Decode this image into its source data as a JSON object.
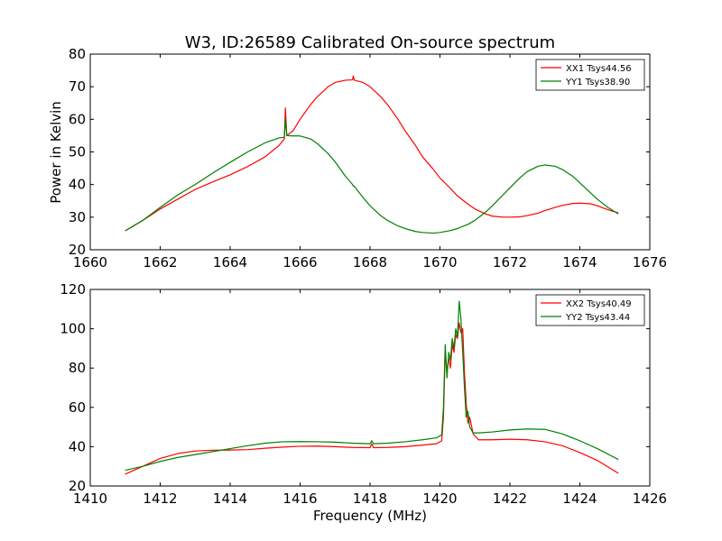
{
  "figure": {
    "title": "W3, ID:26589 Calibrated On-source spectrum",
    "xlabel": "Frequency (MHz)",
    "ylabel": "Power in Kelvin"
  },
  "chart_data": [
    {
      "type": "line",
      "title": "W3, ID:26589 Calibrated On-source spectrum",
      "xlabel": "",
      "ylabel": "Power in Kelvin",
      "xlim": [
        1660,
        1676
      ],
      "ylim": [
        20,
        80
      ],
      "xticks": [
        1660,
        1662,
        1664,
        1666,
        1668,
        1670,
        1672,
        1674,
        1676
      ],
      "yticks": [
        20,
        30,
        40,
        50,
        60,
        70,
        80
      ],
      "legend_position": "top-right",
      "grid": false,
      "series": [
        {
          "name": "XX1 Tsys44.56",
          "color": "#ff0000",
          "x": [
            1661.0,
            1661.5,
            1662.0,
            1662.5,
            1663.0,
            1663.5,
            1664.0,
            1664.5,
            1665.0,
            1665.4,
            1665.55,
            1665.58,
            1665.62,
            1665.8,
            1666.0,
            1666.3,
            1666.5,
            1666.8,
            1667.0,
            1667.3,
            1667.5,
            1667.52,
            1667.55,
            1667.8,
            1668.0,
            1668.3,
            1668.5,
            1668.8,
            1669.0,
            1669.3,
            1669.5,
            1669.8,
            1670.0,
            1670.3,
            1670.5,
            1670.8,
            1671.0,
            1671.3,
            1671.5,
            1671.8,
            1672.0,
            1672.3,
            1672.5,
            1672.8,
            1673.0,
            1673.3,
            1673.5,
            1673.8,
            1674.0,
            1674.3,
            1674.5,
            1674.8,
            1675.1
          ],
          "y": [
            25.8,
            29.0,
            32.5,
            35.5,
            38.5,
            40.8,
            43.0,
            45.5,
            48.5,
            52.0,
            54.0,
            63.5,
            55.0,
            56.5,
            60.0,
            64.5,
            67.0,
            70.0,
            71.3,
            72.0,
            72.1,
            73.3,
            72.0,
            71.3,
            70.0,
            67.0,
            64.5,
            60.0,
            56.5,
            52.0,
            48.5,
            44.8,
            42.0,
            38.8,
            36.5,
            34.0,
            32.5,
            31.0,
            30.3,
            30.0,
            30.0,
            30.1,
            30.5,
            31.2,
            32.0,
            33.0,
            33.6,
            34.2,
            34.3,
            34.1,
            33.5,
            32.3,
            31.3
          ]
        },
        {
          "name": "YY1 Tsys38.90",
          "color": "#008000",
          "x": [
            1661.0,
            1661.5,
            1662.0,
            1662.5,
            1663.0,
            1663.5,
            1664.0,
            1664.5,
            1665.0,
            1665.4,
            1665.55,
            1665.58,
            1665.62,
            1665.8,
            1666.0,
            1666.3,
            1666.5,
            1666.8,
            1667.0,
            1667.3,
            1667.5,
            1667.52,
            1667.55,
            1667.8,
            1668.0,
            1668.3,
            1668.5,
            1668.8,
            1669.0,
            1669.3,
            1669.5,
            1669.8,
            1670.0,
            1670.3,
            1670.5,
            1670.8,
            1671.0,
            1671.3,
            1671.5,
            1671.8,
            1672.0,
            1672.3,
            1672.5,
            1672.8,
            1673.0,
            1673.3,
            1673.5,
            1673.8,
            1674.0,
            1674.3,
            1674.5,
            1674.8,
            1675.1
          ],
          "y": [
            25.8,
            29.0,
            33.0,
            36.8,
            40.0,
            43.5,
            46.8,
            50.0,
            52.8,
            54.3,
            54.5,
            60.0,
            55.0,
            54.9,
            54.9,
            54.0,
            52.5,
            49.5,
            47.0,
            42.5,
            40.0,
            39.5,
            39.5,
            36.0,
            33.5,
            30.5,
            29.0,
            27.3,
            26.5,
            25.6,
            25.3,
            25.1,
            25.3,
            25.9,
            26.5,
            27.8,
            29.0,
            31.5,
            33.5,
            36.8,
            39.0,
            42.2,
            44.0,
            45.6,
            46.0,
            45.6,
            44.6,
            42.5,
            40.5,
            37.5,
            35.5,
            33.0,
            31.0
          ]
        }
      ]
    },
    {
      "type": "line",
      "title": "",
      "xlabel": "Frequency (MHz)",
      "ylabel": "",
      "xlim": [
        1410,
        1426
      ],
      "ylim": [
        20,
        120
      ],
      "xticks": [
        1410,
        1412,
        1414,
        1416,
        1418,
        1420,
        1422,
        1424,
        1426
      ],
      "yticks": [
        20,
        40,
        60,
        80,
        100,
        120
      ],
      "legend_position": "top-right",
      "grid": false,
      "series": [
        {
          "name": "XX2 Tsys40.49",
          "color": "#ff0000",
          "x": [
            1411.0,
            1411.5,
            1412.0,
            1412.5,
            1413.0,
            1413.5,
            1414.0,
            1414.5,
            1415.0,
            1415.5,
            1416.0,
            1416.5,
            1417.0,
            1417.5,
            1418.0,
            1418.05,
            1418.1,
            1418.5,
            1419.0,
            1419.5,
            1419.9,
            1420.05,
            1420.1,
            1420.15,
            1420.2,
            1420.25,
            1420.3,
            1420.35,
            1420.4,
            1420.45,
            1420.5,
            1420.55,
            1420.6,
            1420.65,
            1420.7,
            1420.75,
            1420.8,
            1420.85,
            1420.95,
            1421.1,
            1421.5,
            1422.0,
            1422.5,
            1423.0,
            1423.5,
            1424.0,
            1424.5,
            1425.1
          ],
          "y": [
            26.0,
            30.0,
            34.0,
            36.5,
            37.8,
            38.2,
            38.3,
            38.5,
            39.2,
            39.8,
            40.2,
            40.3,
            40.0,
            39.6,
            39.5,
            41.5,
            39.5,
            39.6,
            40.0,
            40.8,
            41.5,
            43.0,
            55.0,
            88.0,
            78.0,
            85.0,
            80.0,
            92.0,
            88.0,
            97.0,
            95.0,
            103.0,
            98.0,
            100.0,
            78.0,
            62.0,
            52.0,
            55.0,
            46.5,
            43.5,
            43.5,
            43.8,
            43.5,
            42.5,
            40.5,
            37.0,
            33.0,
            26.5
          ]
        },
        {
          "name": "YY2 Tsys43.44",
          "color": "#008000",
          "x": [
            1411.0,
            1411.5,
            1412.0,
            1412.5,
            1413.0,
            1413.5,
            1414.0,
            1414.5,
            1415.0,
            1415.5,
            1416.0,
            1416.5,
            1417.0,
            1417.5,
            1418.0,
            1418.05,
            1418.1,
            1418.5,
            1419.0,
            1419.5,
            1419.9,
            1420.05,
            1420.1,
            1420.15,
            1420.2,
            1420.25,
            1420.3,
            1420.35,
            1420.4,
            1420.45,
            1420.5,
            1420.55,
            1420.6,
            1420.65,
            1420.7,
            1420.75,
            1420.8,
            1420.85,
            1420.95,
            1421.1,
            1421.5,
            1422.0,
            1422.5,
            1423.0,
            1423.5,
            1424.0,
            1424.5,
            1425.1
          ],
          "y": [
            28.0,
            30.0,
            32.5,
            34.5,
            36.0,
            37.5,
            39.0,
            40.5,
            41.8,
            42.5,
            42.6,
            42.5,
            42.3,
            41.8,
            41.5,
            43.0,
            41.5,
            41.8,
            42.5,
            43.5,
            44.5,
            46.0,
            60.0,
            92.0,
            75.0,
            88.0,
            84.0,
            95.0,
            90.0,
            100.0,
            96.0,
            114.0,
            105.0,
            88.0,
            70.0,
            55.0,
            58.0,
            50.0,
            47.0,
            47.0,
            47.5,
            48.5,
            49.0,
            48.8,
            46.5,
            43.0,
            39.0,
            33.5
          ]
        }
      ]
    }
  ]
}
